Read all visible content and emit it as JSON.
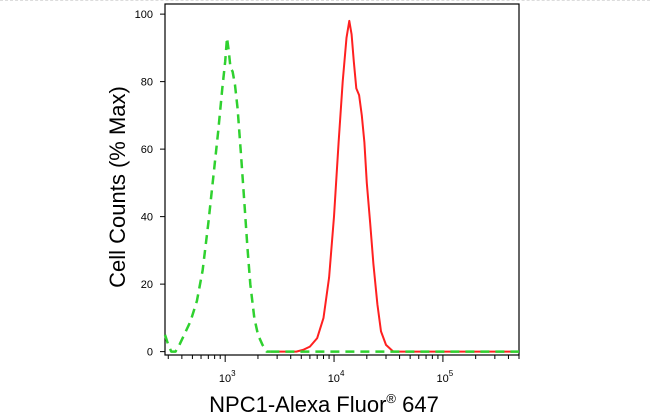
{
  "chart_data": {
    "type": "line",
    "title": "",
    "xlabel": "NPC1-Alexa Fluor",
    "xlabel_superscript": "®",
    "xlabel_suffix": " 647",
    "ylabel": "Cell Counts (% Max)",
    "x_scale": "log",
    "xlim": [
      280,
      500000
    ],
    "ylim": [
      -1,
      103
    ],
    "y_ticks": [
      0,
      20,
      40,
      60,
      80,
      100
    ],
    "x_ticks": [
      {
        "value": 1000,
        "base": "10",
        "exp": "3"
      },
      {
        "value": 10000,
        "base": "10",
        "exp": "4"
      },
      {
        "value": 100000,
        "base": "10",
        "exp": "5"
      }
    ],
    "grid": false,
    "series": [
      {
        "color": "#2fd12f",
        "dash": true,
        "points": [
          [
            280,
            5
          ],
          [
            300,
            2
          ],
          [
            320,
            0
          ],
          [
            350,
            0
          ],
          [
            380,
            2
          ],
          [
            420,
            5
          ],
          [
            480,
            9
          ],
          [
            550,
            15
          ],
          [
            620,
            24
          ],
          [
            700,
            38
          ],
          [
            780,
            52
          ],
          [
            860,
            65
          ],
          [
            940,
            78
          ],
          [
            1000,
            86
          ],
          [
            1040,
            93
          ],
          [
            1080,
            89
          ],
          [
            1120,
            84
          ],
          [
            1170,
            83
          ],
          [
            1230,
            79
          ],
          [
            1300,
            72
          ],
          [
            1400,
            58
          ],
          [
            1500,
            44
          ],
          [
            1600,
            31
          ],
          [
            1700,
            20
          ],
          [
            1850,
            10
          ],
          [
            2000,
            5
          ],
          [
            2200,
            2
          ],
          [
            2400,
            0
          ],
          [
            2600,
            0
          ]
        ]
      },
      {
        "color": "#ff2020",
        "dash": false,
        "points": [
          [
            2600,
            0
          ],
          [
            4500,
            0
          ],
          [
            5200,
            0.5
          ],
          [
            6000,
            1.5
          ],
          [
            7000,
            4
          ],
          [
            8000,
            10
          ],
          [
            9000,
            22
          ],
          [
            10000,
            40
          ],
          [
            11000,
            62
          ],
          [
            12000,
            80
          ],
          [
            13000,
            93
          ],
          [
            13800,
            98
          ],
          [
            14500,
            94
          ],
          [
            15200,
            86
          ],
          [
            16000,
            78
          ],
          [
            17000,
            76
          ],
          [
            18000,
            70
          ],
          [
            19000,
            62
          ],
          [
            20000,
            50
          ],
          [
            21500,
            38
          ],
          [
            23000,
            26
          ],
          [
            25000,
            14
          ],
          [
            27000,
            6
          ],
          [
            30000,
            2
          ],
          [
            35000,
            0
          ],
          [
            500000,
            0
          ]
        ]
      },
      {
        "color": "#2fd12f",
        "dash": true,
        "points": [
          [
            2600,
            0
          ],
          [
            500000,
            0
          ]
        ]
      }
    ]
  }
}
